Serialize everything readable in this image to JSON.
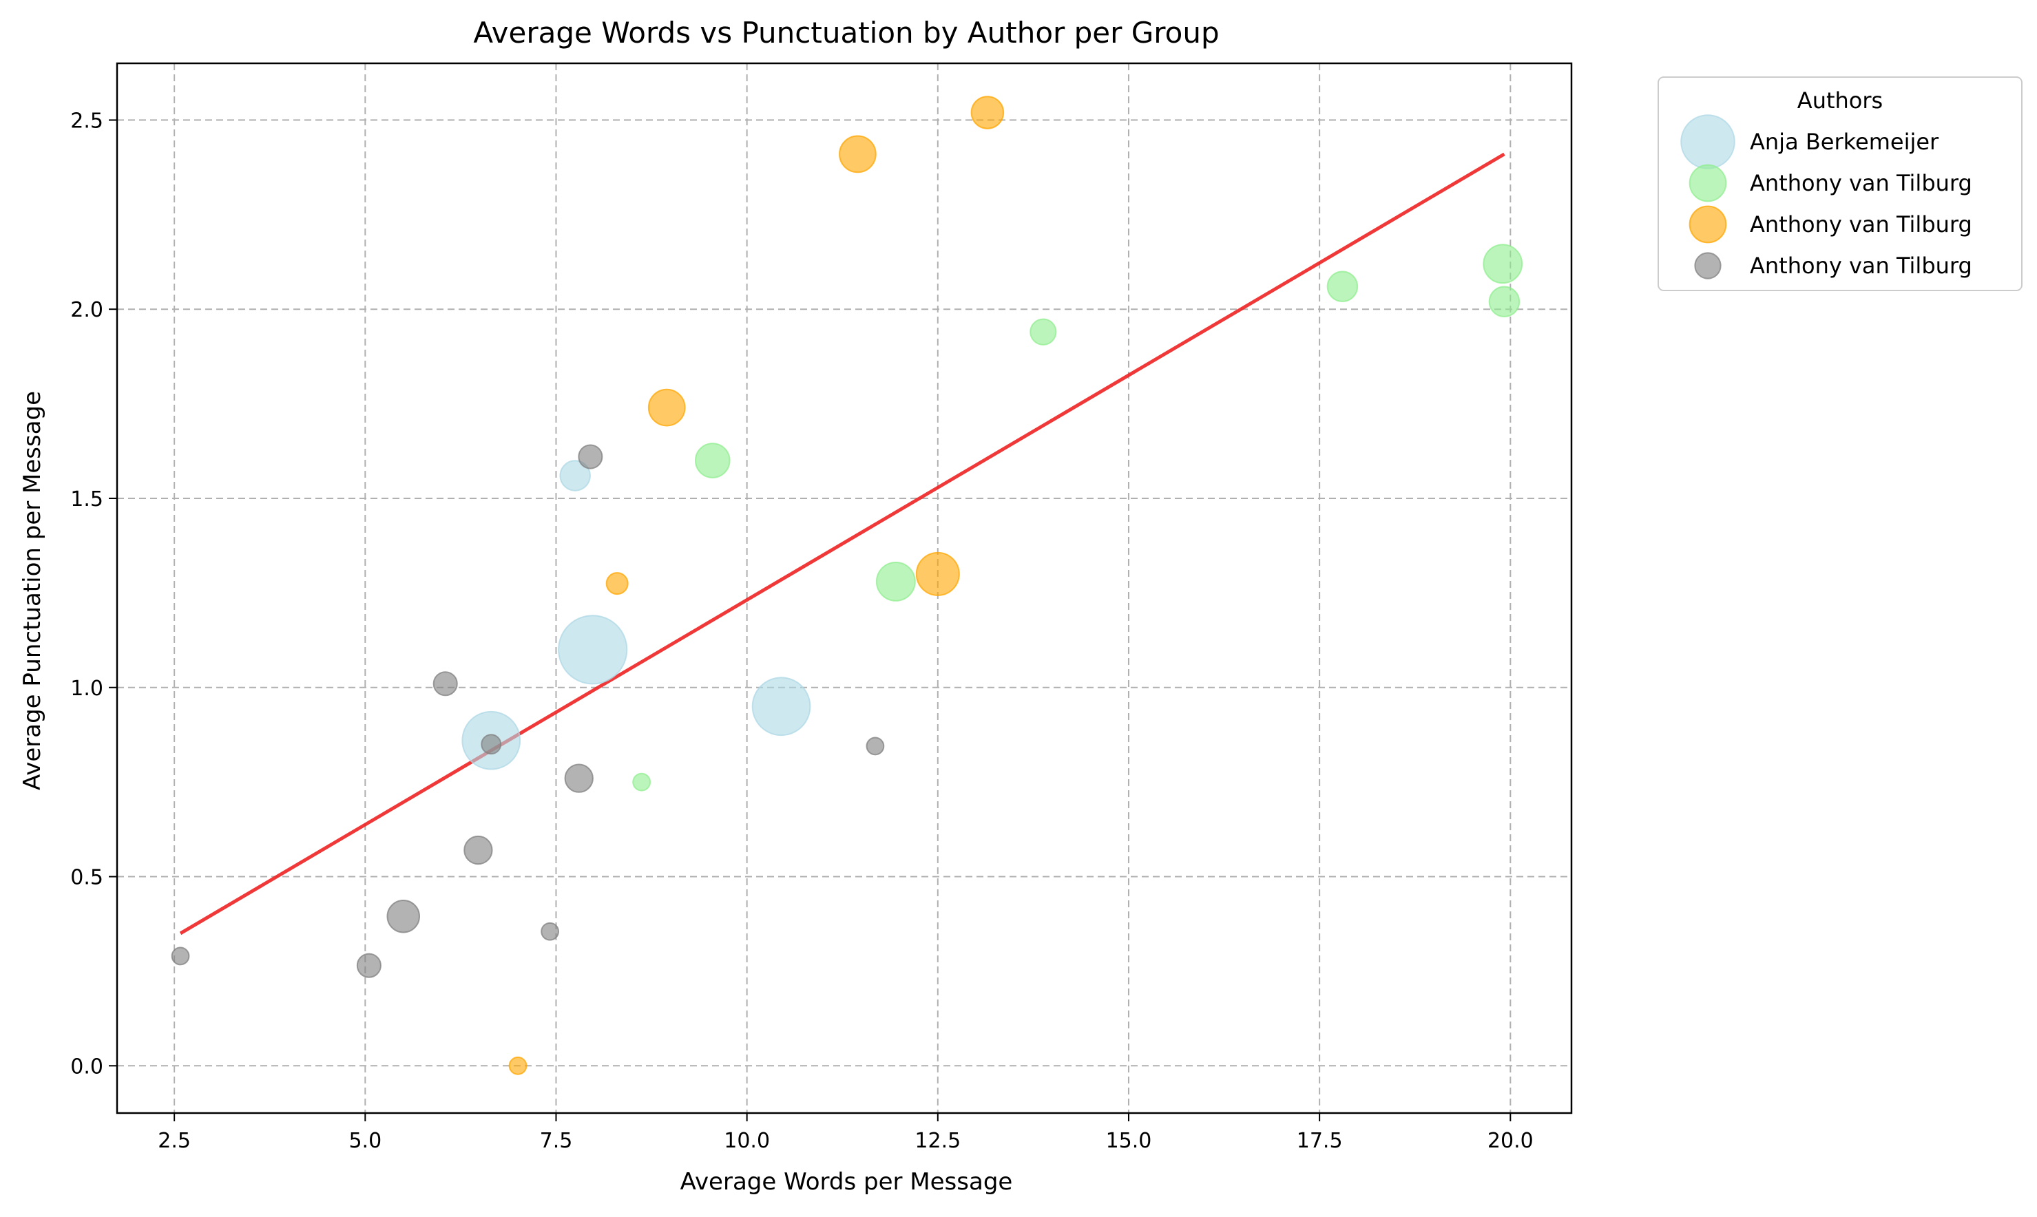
{
  "chart_data": {
    "type": "scatter",
    "title": "Average Words vs Punctuation by Author per Group",
    "xlabel": "Average Words per Message",
    "ylabel": "Average Punctuation per Message",
    "xlim": [
      1.75,
      20.8
    ],
    "ylim": [
      -0.125,
      2.65
    ],
    "xticks": [
      "2.5",
      "5.0",
      "7.5",
      "10.0",
      "12.5",
      "15.0",
      "17.5",
      "20.0"
    ],
    "xtick_values": [
      2.5,
      5.0,
      7.5,
      10.0,
      12.5,
      15.0,
      17.5,
      20.0
    ],
    "yticks": [
      "0.0",
      "0.5",
      "1.0",
      "1.5",
      "2.0",
      "2.5"
    ],
    "ytick_values": [
      0.0,
      0.5,
      1.0,
      1.5,
      2.0,
      2.5
    ],
    "grid": true,
    "legend": {
      "title": "Authors",
      "placement": "outside-top-right"
    },
    "series": [
      {
        "name": "Anja Berkemeijer",
        "color": "#add8e6",
        "legend_size": 25,
        "points": [
          {
            "x": 7.75,
            "y": 1.56,
            "s": 14
          },
          {
            "x": 7.98,
            "y": 1.1,
            "s": 32
          },
          {
            "x": 10.45,
            "y": 0.95,
            "s": 27
          },
          {
            "x": 6.65,
            "y": 0.86,
            "s": 27
          }
        ]
      },
      {
        "name": "Anthony van Tilburg",
        "color": "#90ee90",
        "legend_size": 17,
        "points": [
          {
            "x": 19.9,
            "y": 2.12,
            "s": 18
          },
          {
            "x": 19.92,
            "y": 2.02,
            "s": 14
          },
          {
            "x": 17.8,
            "y": 2.06,
            "s": 14
          },
          {
            "x": 13.88,
            "y": 1.94,
            "s": 12
          },
          {
            "x": 9.55,
            "y": 1.6,
            "s": 16
          },
          {
            "x": 11.95,
            "y": 1.28,
            "s": 18
          },
          {
            "x": 8.62,
            "y": 0.75,
            "s": 8
          }
        ]
      },
      {
        "name": "Anthony van Tilburg",
        "color": "#ffa500",
        "legend_size": 17,
        "points": [
          {
            "x": 13.15,
            "y": 2.52,
            "s": 15
          },
          {
            "x": 11.45,
            "y": 2.41,
            "s": 17
          },
          {
            "x": 8.95,
            "y": 1.74,
            "s": 17
          },
          {
            "x": 8.3,
            "y": 1.275,
            "s": 10
          },
          {
            "x": 12.5,
            "y": 1.3,
            "s": 20
          },
          {
            "x": 7.0,
            "y": 0.0,
            "s": 8
          }
        ]
      },
      {
        "name": "Anthony van Tilburg",
        "color": "#808080",
        "legend_size": 12,
        "points": [
          {
            "x": 7.95,
            "y": 1.61,
            "s": 11
          },
          {
            "x": 6.05,
            "y": 1.01,
            "s": 11
          },
          {
            "x": 6.65,
            "y": 0.85,
            "s": 9
          },
          {
            "x": 11.68,
            "y": 0.845,
            "s": 8
          },
          {
            "x": 7.8,
            "y": 0.76,
            "s": 13
          },
          {
            "x": 6.48,
            "y": 0.57,
            "s": 13
          },
          {
            "x": 5.5,
            "y": 0.395,
            "s": 15
          },
          {
            "x": 7.42,
            "y": 0.355,
            "s": 8
          },
          {
            "x": 5.05,
            "y": 0.265,
            "s": 11
          },
          {
            "x": 2.58,
            "y": 0.29,
            "s": 8
          }
        ]
      }
    ],
    "trendline": {
      "color": "#ee2222",
      "x": [
        2.58,
        19.92
      ],
      "y": [
        0.35,
        2.41
      ]
    }
  }
}
